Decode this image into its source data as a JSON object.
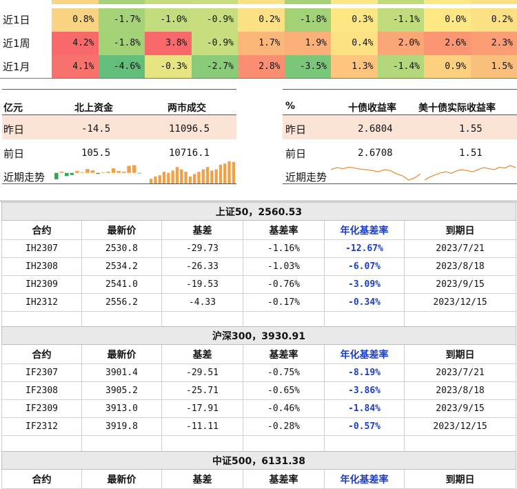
{
  "heat": {
    "rows": [
      {
        "label": "近1日",
        "cells": [
          {
            "v": "0.8%",
            "c": "#f7d382"
          },
          {
            "v": "-1.7%",
            "c": "#a6d377"
          },
          {
            "v": "-1.0%",
            "c": "#c3dc7d"
          },
          {
            "v": "-0.9%",
            "c": "#c8de7e"
          },
          {
            "v": "0.2%",
            "c": "#fbe183"
          },
          {
            "v": "-1.8%",
            "c": "#a3d276"
          },
          {
            "v": "0.3%",
            "c": "#fde784"
          },
          {
            "v": "-1.1%",
            "c": "#c0db7c"
          },
          {
            "v": "0.0%",
            "c": "#fee884"
          },
          {
            "v": "0.2%",
            "c": "#fbe183"
          }
        ]
      },
      {
        "label": "近1周",
        "cells": [
          {
            "v": "4.2%",
            "c": "#f8696b"
          },
          {
            "v": "-1.8%",
            "c": "#a3d276"
          },
          {
            "v": "3.8%",
            "c": "#f8696b"
          },
          {
            "v": "-0.9%",
            "c": "#c8de7e"
          },
          {
            "v": "1.7%",
            "c": "#fbb77a"
          },
          {
            "v": "1.9%",
            "c": "#fbb07a"
          },
          {
            "v": "0.4%",
            "c": "#fde283"
          },
          {
            "v": "2.0%",
            "c": "#faa676"
          },
          {
            "v": "2.6%",
            "c": "#f99573"
          },
          {
            "v": "2.3%",
            "c": "#fa9d75"
          }
        ]
      },
      {
        "label": "近1月",
        "cells": [
          {
            "v": "4.1%",
            "c": "#f8726d"
          },
          {
            "v": "-4.6%",
            "c": "#63be7b"
          },
          {
            "v": "-0.3%",
            "c": "#e6e582"
          },
          {
            "v": "-2.7%",
            "c": "#8acb79"
          },
          {
            "v": "2.8%",
            "c": "#f98e72"
          },
          {
            "v": "-3.5%",
            "c": "#7bc77a"
          },
          {
            "v": "1.3%",
            "c": "#fcc47d"
          },
          {
            "v": "-1.4%",
            "c": "#b3d77b"
          },
          {
            "v": "0.9%",
            "c": "#fcd07f"
          },
          {
            "v": "1.5%",
            "c": "#fbbf7c"
          }
        ]
      }
    ]
  },
  "flows": {
    "unit": "亿元",
    "col1": "北上资金",
    "col2": "两市成交",
    "row1": {
      "label": "昨日",
      "v1": "-14.5",
      "v2": "11096.5"
    },
    "row2": {
      "label": "前日",
      "v1": "105.5",
      "v2": "10716.1"
    },
    "trend_label": "近期走势",
    "north_bars": [
      -0.6,
      0.1,
      -0.3,
      -0.2,
      0.15,
      0.05,
      0.3,
      0.2,
      -0.1,
      0.05,
      0.1,
      0.35,
      0.15,
      0.1,
      0.55,
      0.6,
      -0.05
    ],
    "turnover_bars": [
      0.2,
      0.3,
      0.35,
      0.5,
      0.45,
      0.55,
      0.7,
      0.6,
      0.5,
      0.3,
      0.4,
      0.5,
      0.6,
      0.7,
      0.55,
      0.6,
      0.8,
      0.85,
      0.95,
      0.92
    ]
  },
  "bonds": {
    "unit": "%",
    "col1": "十债收益率",
    "col2": "美十债实际收益率",
    "row1": {
      "label": "昨日",
      "v1": "2.6804",
      "v2": "1.55"
    },
    "row2": {
      "label": "前日",
      "v1": "2.6708",
      "v2": "1.51"
    },
    "trend_label": "近期走势",
    "cn_line": [
      0.6,
      0.7,
      0.65,
      0.72,
      0.68,
      0.62,
      0.6,
      0.55,
      0.5,
      0.6,
      0.55,
      0.4,
      0.3,
      0.1,
      0.2,
      0.4
    ],
    "us_line": [
      0.1,
      0.25,
      0.35,
      0.45,
      0.5,
      0.42,
      0.55,
      0.6,
      0.55,
      0.5,
      0.6,
      0.7,
      0.65,
      0.6,
      0.72,
      0.68,
      0.8,
      0.7
    ]
  },
  "futures": [
    {
      "title": "上证50，2560.53",
      "headers": [
        "合约",
        "最新价",
        "基差",
        "基差率",
        "年化基差率",
        "到期日"
      ],
      "rows": [
        [
          "IH2307",
          "2530.8",
          "-29.73",
          "-1.16%",
          "-12.67%",
          "2023/7/21"
        ],
        [
          "IH2308",
          "2534.2",
          "-26.33",
          "-1.03%",
          "-6.07%",
          "2023/8/18"
        ],
        [
          "IH2309",
          "2541.0",
          "-19.53",
          "-0.76%",
          "-3.09%",
          "2023/9/15"
        ],
        [
          "IH2312",
          "2556.2",
          "-4.33",
          "-0.17%",
          "-0.34%",
          "2023/12/15"
        ]
      ]
    },
    {
      "title": "沪深300，3930.91",
      "headers": [
        "合约",
        "最新价",
        "基差",
        "基差率",
        "年化基差率",
        "到期日"
      ],
      "rows": [
        [
          "IF2307",
          "3901.4",
          "-29.51",
          "-0.75%",
          "-8.19%",
          "2023/7/21"
        ],
        [
          "IF2308",
          "3905.2",
          "-25.71",
          "-0.65%",
          "-3.86%",
          "2023/8/18"
        ],
        [
          "IF2309",
          "3913.0",
          "-17.91",
          "-0.46%",
          "-1.84%",
          "2023/9/15"
        ],
        [
          "IF2312",
          "3919.8",
          "-11.11",
          "-0.28%",
          "-0.57%",
          "2023/12/15"
        ]
      ]
    },
    {
      "title": "中证500，6131.38",
      "headers": [
        "合约",
        "最新价",
        "基差",
        "基差率",
        "年化基差率",
        "到期日"
      ],
      "rows": []
    }
  ]
}
